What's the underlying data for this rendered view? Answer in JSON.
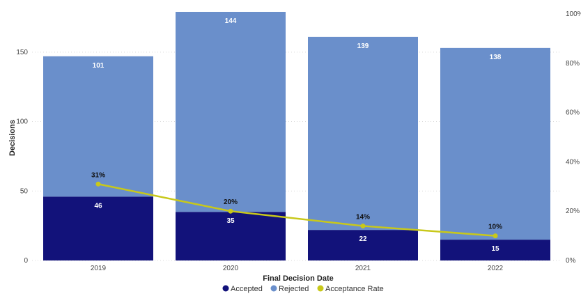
{
  "chart_data": {
    "type": "bar",
    "stacked": true,
    "xlabel": "Final Decision Date",
    "ylabel": "Decisions",
    "categories": [
      "2019",
      "2020",
      "2021",
      "2022"
    ],
    "series": [
      {
        "name": "Accepted",
        "values": [
          46,
          35,
          22,
          15
        ],
        "color": "#12127a"
      },
      {
        "name": "Rejected",
        "values": [
          101,
          144,
          139,
          138
        ],
        "color": "#6a8fcb"
      }
    ],
    "line_series": {
      "name": "Acceptance Rate",
      "values": [
        0.31,
        0.2,
        0.14,
        0.1
      ],
      "labels": [
        "31%",
        "20%",
        "14%",
        "10%"
      ],
      "color": "#c8c81a",
      "axis": "right"
    },
    "ylim": [
      0,
      179
    ],
    "y_ticks": [
      "0",
      "50",
      "100",
      "150"
    ],
    "y2lim": [
      0,
      1
    ],
    "y2_ticks": [
      "0%",
      "20%",
      "40%",
      "60%",
      "80%",
      "100%"
    ],
    "grid": true,
    "legend": "bottom-center"
  }
}
